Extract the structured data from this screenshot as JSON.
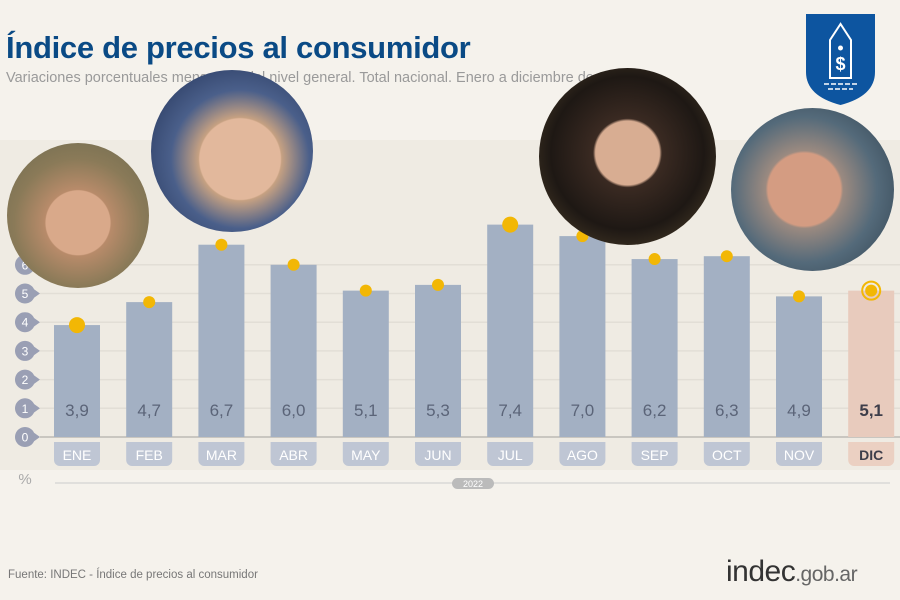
{
  "title": "Índice de precios al consumidor",
  "subtitle": "Variaciones porcentuales mensuales del nivel general. Total nacional. Enero a diciembre de 2022",
  "source": "Fuente: INDEC - Índice de precios al consumidor",
  "site": {
    "brand": "indec",
    "domain": ".gob.ar"
  },
  "colors": {
    "title": "#0a4a85",
    "bar": "#a3b0c3",
    "highlight_bar": "#e8cbbd",
    "marker": "#f2b705",
    "logo": "#0d55a0"
  },
  "photos": [
    "person-portrait-1",
    "person-portrait-2",
    "person-portrait-3",
    "person-portrait-4"
  ],
  "chart_data": {
    "type": "bar",
    "title": "Índice de precios al consumidor",
    "ylabel": "%",
    "xlabel": "2022",
    "ylim": [
      0,
      8
    ],
    "yticks": [
      0,
      1,
      2,
      3,
      4,
      5,
      6
    ],
    "grid": true,
    "categories": [
      "ENE",
      "FEB",
      "MAR",
      "ABR",
      "MAY",
      "JUN",
      "JUL",
      "AGO",
      "SEP",
      "OCT",
      "NOV",
      "DIC"
    ],
    "values": [
      3.9,
      4.7,
      6.7,
      6.0,
      5.1,
      5.3,
      7.4,
      7.0,
      6.2,
      6.3,
      4.9,
      5.1
    ],
    "value_labels": [
      "3,9",
      "4,7",
      "6,7",
      "6,0",
      "5,1",
      "5,3",
      "7,4",
      "7,0",
      "6,2",
      "6,3",
      "4,9",
      "5,1"
    ],
    "highlight": "DIC"
  }
}
